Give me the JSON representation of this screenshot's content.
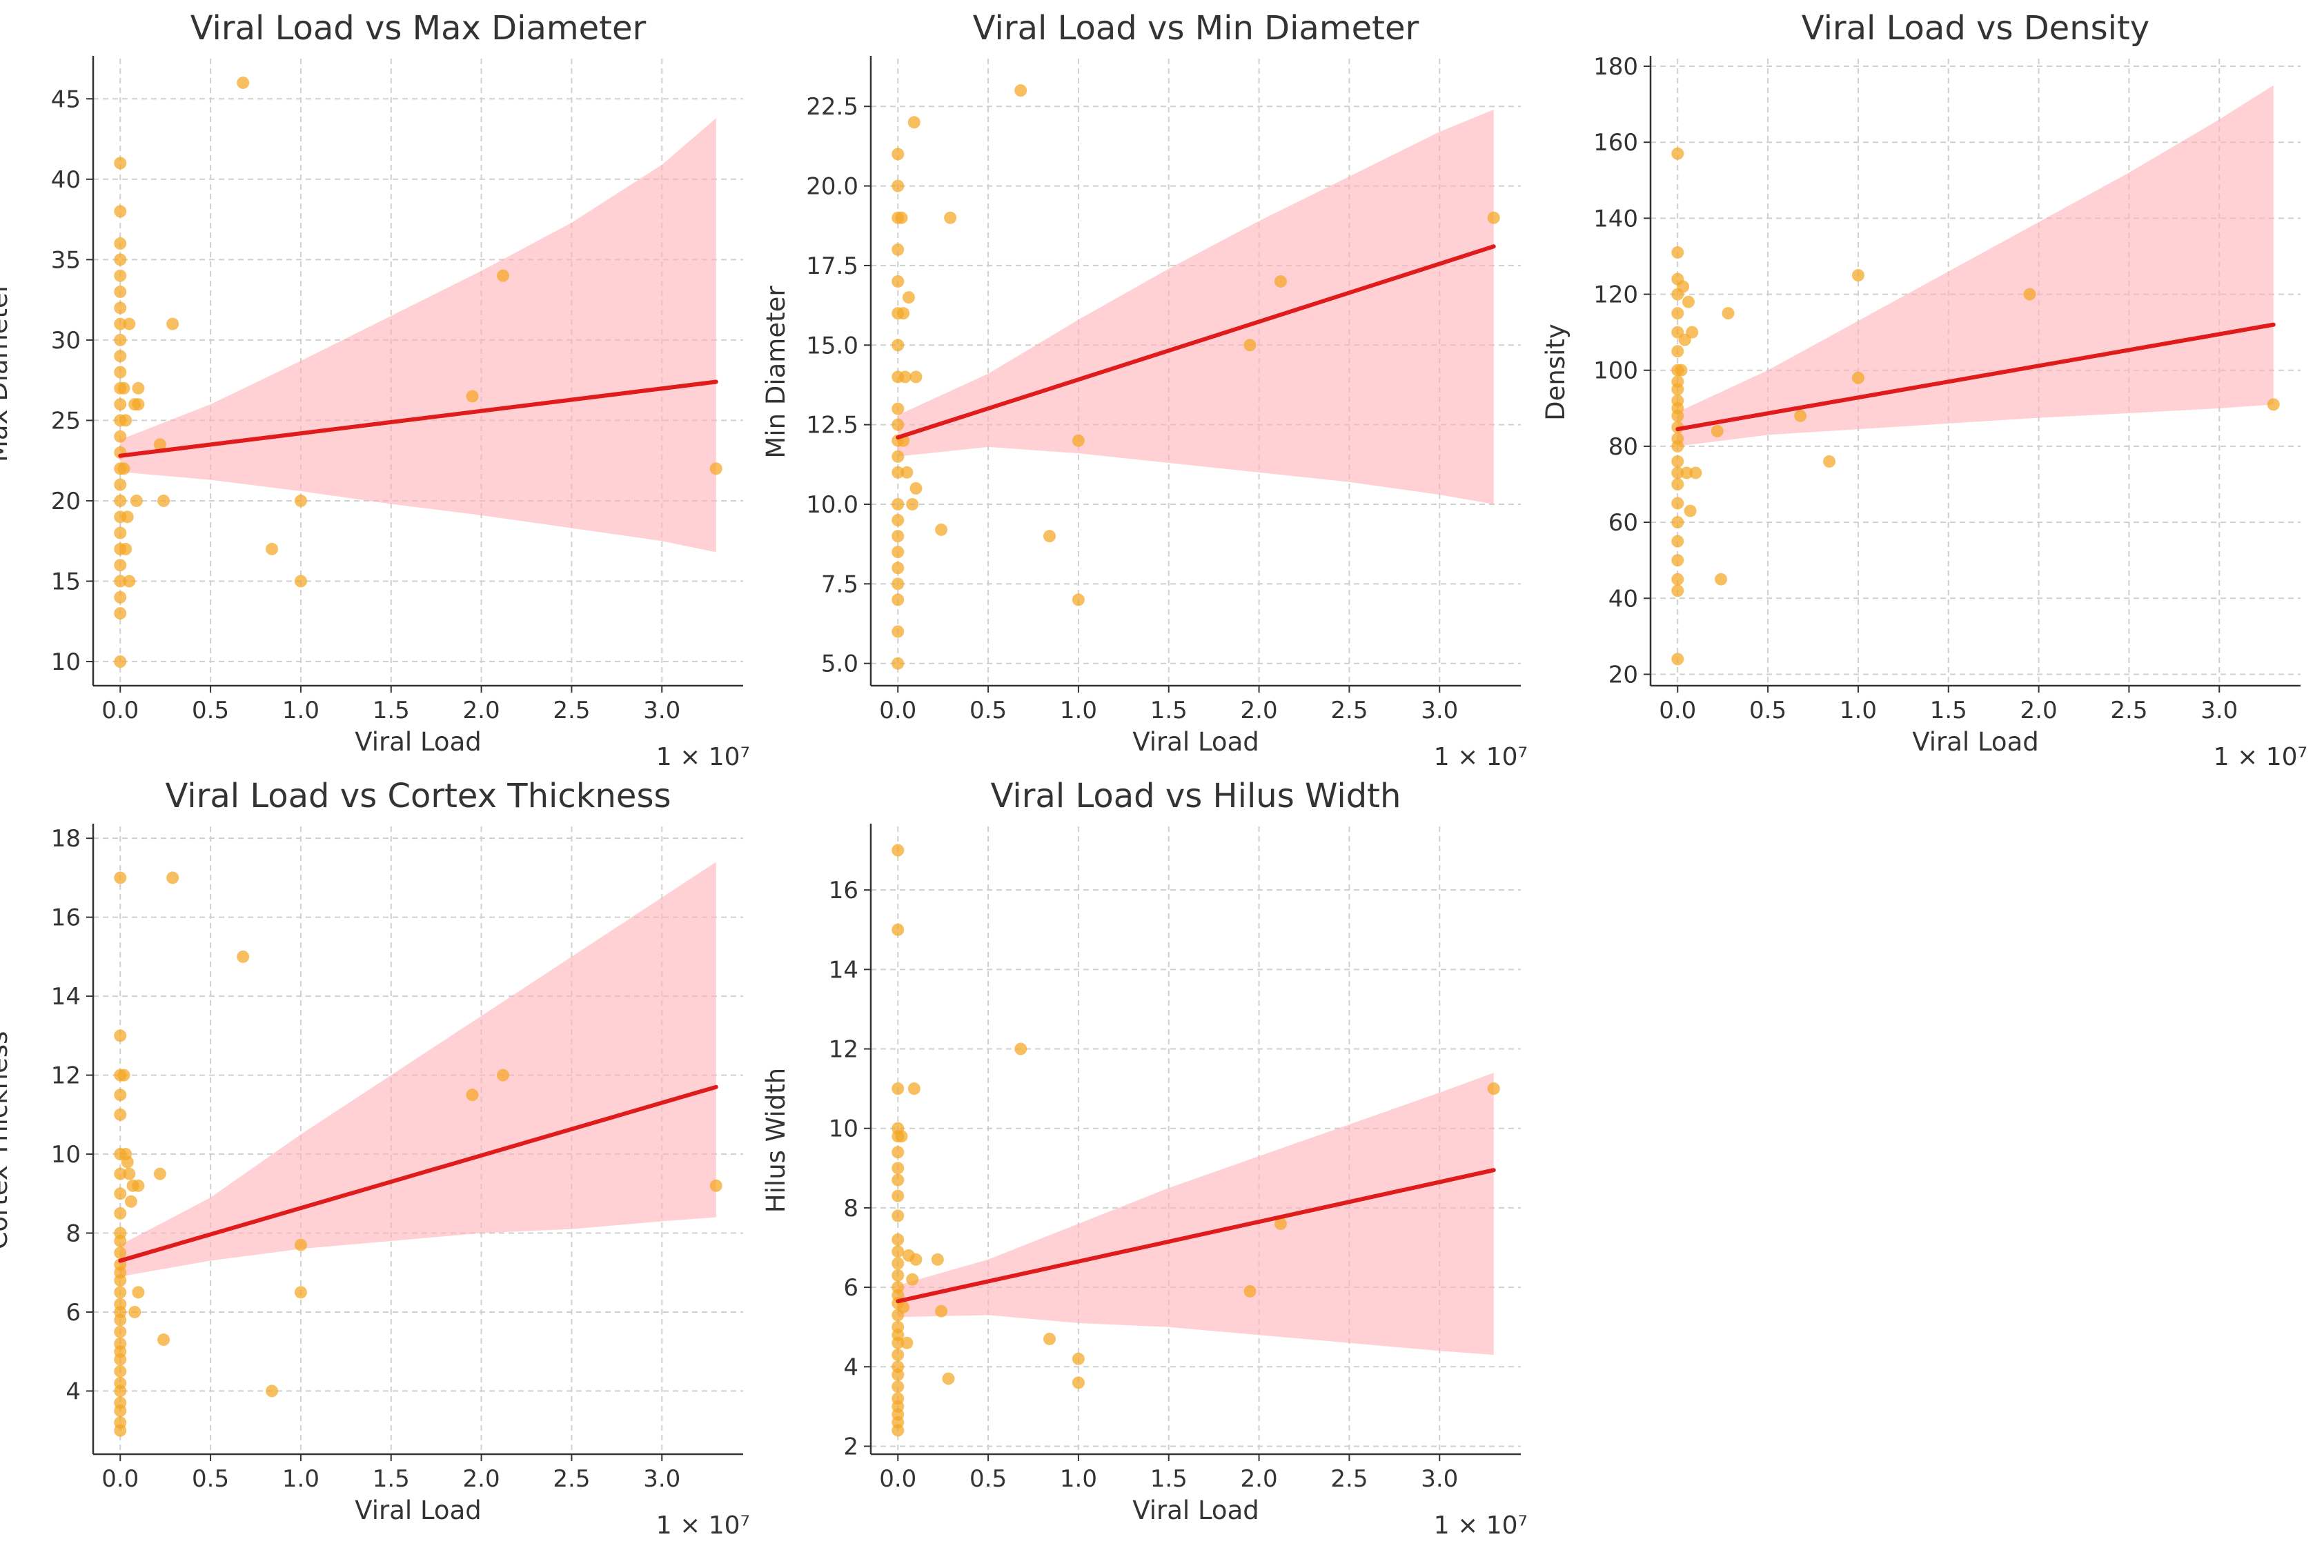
{
  "figure": {
    "colors": {
      "point": "#f5a623",
      "line": "#e01b1b",
      "band": "#ffb3b8",
      "grid": "#cfcfcf",
      "axis": "#333333"
    }
  },
  "chart_data": [
    {
      "type": "scatter",
      "title": "Viral Load vs Max Diameter",
      "xlabel": "Viral Load",
      "ylabel": "Max Diameter",
      "x_multiplier": "1 × 10⁷",
      "xlim": [
        -0.15,
        3.45
      ],
      "ylim": [
        8.5,
        47.5
      ],
      "xticks": [
        0.0,
        0.5,
        1.0,
        1.5,
        2.0,
        2.5,
        3.0
      ],
      "xtick_labels": [
        "0.0",
        "0.5",
        "1.0",
        "1.5",
        "2.0",
        "2.5",
        "3.0"
      ],
      "yticks": [
        10,
        15,
        20,
        25,
        30,
        35,
        40,
        45
      ],
      "ytick_labels": [
        "10",
        "15",
        "20",
        "25",
        "30",
        "35",
        "40",
        "45"
      ],
      "points": [
        [
          0,
          41
        ],
        [
          0,
          38
        ],
        [
          0,
          36
        ],
        [
          0,
          35
        ],
        [
          0,
          34
        ],
        [
          0,
          33
        ],
        [
          0,
          32
        ],
        [
          0,
          31
        ],
        [
          0,
          30
        ],
        [
          0,
          29
        ],
        [
          0,
          28
        ],
        [
          0,
          27
        ],
        [
          0,
          26
        ],
        [
          0,
          25
        ],
        [
          0,
          24
        ],
        [
          0,
          23
        ],
        [
          0,
          22
        ],
        [
          0,
          21
        ],
        [
          0,
          20
        ],
        [
          0,
          19
        ],
        [
          0,
          18
        ],
        [
          0,
          17
        ],
        [
          0,
          16
        ],
        [
          0,
          15
        ],
        [
          0,
          14
        ],
        [
          0,
          13
        ],
        [
          0,
          10
        ],
        [
          0.02,
          27
        ],
        [
          0.02,
          22
        ],
        [
          0.03,
          17
        ],
        [
          0.03,
          25
        ],
        [
          0.04,
          19
        ],
        [
          0.05,
          31
        ],
        [
          0.05,
          15
        ],
        [
          0.08,
          26
        ],
        [
          0.09,
          20
        ],
        [
          0.1,
          27
        ],
        [
          0.1,
          26
        ],
        [
          0.22,
          23.5
        ],
        [
          0.24,
          20
        ],
        [
          0.29,
          31
        ],
        [
          0.68,
          46
        ],
        [
          0.84,
          17
        ],
        [
          1.0,
          15
        ],
        [
          1.0,
          20
        ],
        [
          1.95,
          26.5
        ],
        [
          2.12,
          34
        ],
        [
          3.3,
          22
        ]
      ],
      "fit": {
        "x": [
          0.0,
          3.3
        ],
        "y": [
          22.8,
          27.4
        ]
      },
      "band": {
        "x": [
          0.0,
          0.5,
          1.0,
          1.5,
          2.0,
          2.5,
          3.0,
          3.3
        ],
        "lower": [
          21.8,
          21.3,
          20.6,
          19.8,
          19.1,
          18.3,
          17.5,
          16.8
        ],
        "upper": [
          23.8,
          26.0,
          28.7,
          31.5,
          34.3,
          37.3,
          40.9,
          43.8
        ]
      }
    },
    {
      "type": "scatter",
      "title": "Viral Load vs Min Diameter",
      "xlabel": "Viral Load",
      "ylabel": "Min Diameter",
      "x_multiplier": "1 × 10⁷",
      "xlim": [
        -0.15,
        3.45
      ],
      "ylim": [
        4.3,
        24.0
      ],
      "xticks": [
        0.0,
        0.5,
        1.0,
        1.5,
        2.0,
        2.5,
        3.0
      ],
      "xtick_labels": [
        "0.0",
        "0.5",
        "1.0",
        "1.5",
        "2.0",
        "2.5",
        "3.0"
      ],
      "yticks": [
        5.0,
        7.5,
        10.0,
        12.5,
        15.0,
        17.5,
        20.0,
        22.5
      ],
      "ytick_labels": [
        "5.0",
        "7.5",
        "10.0",
        "12.5",
        "15.0",
        "17.5",
        "20.0",
        "22.5"
      ],
      "points": [
        [
          0,
          21
        ],
        [
          0,
          20
        ],
        [
          0,
          19
        ],
        [
          0,
          18
        ],
        [
          0,
          17
        ],
        [
          0,
          16
        ],
        [
          0,
          15
        ],
        [
          0,
          14
        ],
        [
          0,
          13
        ],
        [
          0,
          12.5
        ],
        [
          0,
          12
        ],
        [
          0,
          11.5
        ],
        [
          0,
          11
        ],
        [
          0,
          10
        ],
        [
          0,
          9.5
        ],
        [
          0,
          9
        ],
        [
          0,
          8.5
        ],
        [
          0,
          8
        ],
        [
          0,
          7.5
        ],
        [
          0,
          7
        ],
        [
          0,
          6
        ],
        [
          0,
          5
        ],
        [
          0.02,
          19
        ],
        [
          0.03,
          16
        ],
        [
          0.03,
          12
        ],
        [
          0.04,
          14
        ],
        [
          0.05,
          11
        ],
        [
          0.06,
          16.5
        ],
        [
          0.08,
          10
        ],
        [
          0.09,
          22
        ],
        [
          0.1,
          14
        ],
        [
          0.1,
          10.5
        ],
        [
          0.24,
          9.2
        ],
        [
          0.29,
          19
        ],
        [
          0.68,
          23
        ],
        [
          0.84,
          9
        ],
        [
          1.0,
          7
        ],
        [
          1.0,
          12
        ],
        [
          1.95,
          15
        ],
        [
          2.12,
          17
        ],
        [
          3.3,
          19
        ]
      ],
      "fit": {
        "x": [
          0.0,
          3.3
        ],
        "y": [
          12.1,
          18.1
        ]
      },
      "band": {
        "x": [
          0.0,
          0.5,
          1.0,
          1.5,
          2.0,
          2.5,
          3.0,
          3.3
        ],
        "lower": [
          11.5,
          11.8,
          11.6,
          11.3,
          11.0,
          10.7,
          10.3,
          10.0
        ],
        "upper": [
          12.8,
          14.1,
          15.8,
          17.4,
          18.9,
          20.3,
          21.7,
          22.4
        ]
      }
    },
    {
      "type": "scatter",
      "title": "Viral Load vs Density",
      "xlabel": "Viral Load",
      "ylabel": "Density",
      "x_multiplier": "1 × 10⁷",
      "xlim": [
        -0.15,
        3.45
      ],
      "ylim": [
        17,
        182
      ],
      "xticks": [
        0.0,
        0.5,
        1.0,
        1.5,
        2.0,
        2.5,
        3.0
      ],
      "xtick_labels": [
        "0.0",
        "0.5",
        "1.0",
        "1.5",
        "2.0",
        "2.5",
        "3.0"
      ],
      "yticks": [
        20,
        40,
        60,
        80,
        100,
        120,
        140,
        160,
        180
      ],
      "ytick_labels": [
        "20",
        "40",
        "60",
        "80",
        "100",
        "120",
        "140",
        "160",
        "180"
      ],
      "points": [
        [
          0,
          157
        ],
        [
          0,
          131
        ],
        [
          0,
          124
        ],
        [
          0,
          120
        ],
        [
          0,
          115
        ],
        [
          0,
          110
        ],
        [
          0,
          105
        ],
        [
          0,
          100
        ],
        [
          0,
          97
        ],
        [
          0,
          95
        ],
        [
          0,
          92
        ],
        [
          0,
          90
        ],
        [
          0,
          88
        ],
        [
          0,
          85
        ],
        [
          0,
          82
        ],
        [
          0,
          80
        ],
        [
          0,
          76
        ],
        [
          0,
          73
        ],
        [
          0,
          70
        ],
        [
          0,
          65
        ],
        [
          0,
          60
        ],
        [
          0,
          55
        ],
        [
          0,
          50
        ],
        [
          0,
          45
        ],
        [
          0,
          42
        ],
        [
          0,
          24
        ],
        [
          0.02,
          100
        ],
        [
          0.03,
          122
        ],
        [
          0.04,
          108
        ],
        [
          0.05,
          73
        ],
        [
          0.06,
          118
        ],
        [
          0.07,
          63
        ],
        [
          0.08,
          110
        ],
        [
          0.1,
          73
        ],
        [
          0.22,
          84
        ],
        [
          0.24,
          45
        ],
        [
          0.28,
          115
        ],
        [
          0.68,
          88
        ],
        [
          0.84,
          76
        ],
        [
          1.0,
          98
        ],
        [
          1.0,
          125
        ],
        [
          1.95,
          120
        ],
        [
          3.3,
          91
        ]
      ],
      "fit": {
        "x": [
          0.0,
          3.3
        ],
        "y": [
          84.5,
          112.0
        ]
      },
      "band": {
        "x": [
          0.0,
          0.5,
          1.0,
          1.5,
          2.0,
          2.5,
          3.0,
          3.3
        ],
        "lower": [
          80,
          83,
          84.5,
          86,
          87.5,
          88.7,
          90,
          91
        ],
        "upper": [
          89,
          100,
          113,
          126,
          139,
          152,
          166,
          175
        ]
      }
    },
    {
      "type": "scatter",
      "title": "Viral Load vs Cortex Thickness",
      "xlabel": "Viral Load",
      "ylabel": "Cortex Thickness",
      "x_multiplier": "1 × 10⁷",
      "xlim": [
        -0.15,
        3.45
      ],
      "ylim": [
        2.4,
        18.3
      ],
      "xticks": [
        0.0,
        0.5,
        1.0,
        1.5,
        2.0,
        2.5,
        3.0
      ],
      "xtick_labels": [
        "0.0",
        "0.5",
        "1.0",
        "1.5",
        "2.0",
        "2.5",
        "3.0"
      ],
      "yticks": [
        4,
        6,
        8,
        10,
        12,
        14,
        16,
        18
      ],
      "ytick_labels": [
        "4",
        "6",
        "8",
        "10",
        "12",
        "14",
        "16",
        "18"
      ],
      "points": [
        [
          0,
          17
        ],
        [
          0,
          13
        ],
        [
          0,
          12
        ],
        [
          0,
          11.5
        ],
        [
          0,
          11
        ],
        [
          0,
          10
        ],
        [
          0,
          9.5
        ],
        [
          0,
          9
        ],
        [
          0,
          8.5
        ],
        [
          0,
          8
        ],
        [
          0,
          7.8
        ],
        [
          0,
          7.5
        ],
        [
          0,
          7.2
        ],
        [
          0,
          7
        ],
        [
          0,
          6.8
        ],
        [
          0,
          6.5
        ],
        [
          0,
          6.2
        ],
        [
          0,
          6
        ],
        [
          0,
          5.8
        ],
        [
          0,
          5.5
        ],
        [
          0,
          5.2
        ],
        [
          0,
          5
        ],
        [
          0,
          4.8
        ],
        [
          0,
          4.5
        ],
        [
          0,
          4.2
        ],
        [
          0,
          4
        ],
        [
          0,
          3.7
        ],
        [
          0,
          3.5
        ],
        [
          0,
          3.2
        ],
        [
          0,
          3
        ],
        [
          0.02,
          12
        ],
        [
          0.03,
          10
        ],
        [
          0.04,
          9.8
        ],
        [
          0.05,
          9.5
        ],
        [
          0.06,
          8.8
        ],
        [
          0.07,
          9.2
        ],
        [
          0.08,
          6
        ],
        [
          0.1,
          9.2
        ],
        [
          0.1,
          6.5
        ],
        [
          0.22,
          9.5
        ],
        [
          0.24,
          5.3
        ],
        [
          0.29,
          17
        ],
        [
          0.68,
          15
        ],
        [
          0.84,
          4
        ],
        [
          1.0,
          7.7
        ],
        [
          1.0,
          6.5
        ],
        [
          1.95,
          11.5
        ],
        [
          2.12,
          12
        ],
        [
          3.3,
          9.2
        ]
      ],
      "fit": {
        "x": [
          0.0,
          3.3
        ],
        "y": [
          7.3,
          11.7
        ]
      },
      "band": {
        "x": [
          0.0,
          0.5,
          1.0,
          1.5,
          2.0,
          2.5,
          3.0,
          3.3
        ],
        "lower": [
          6.9,
          7.3,
          7.6,
          7.8,
          8.0,
          8.1,
          8.3,
          8.4
        ],
        "upper": [
          7.7,
          8.9,
          10.5,
          12.0,
          13.5,
          15.0,
          16.5,
          17.4
        ]
      }
    },
    {
      "type": "scatter",
      "title": "Viral Load vs Hilus Width",
      "xlabel": "Viral Load",
      "ylabel": "Hilus Width",
      "x_multiplier": "1 × 10⁷",
      "xlim": [
        -0.15,
        3.45
      ],
      "ylim": [
        1.8,
        17.6
      ],
      "xticks": [
        0.0,
        0.5,
        1.0,
        1.5,
        2.0,
        2.5,
        3.0
      ],
      "xtick_labels": [
        "0.0",
        "0.5",
        "1.0",
        "1.5",
        "2.0",
        "2.5",
        "3.0"
      ],
      "yticks": [
        2,
        4,
        6,
        8,
        10,
        12,
        14,
        16
      ],
      "ytick_labels": [
        "2",
        "4",
        "6",
        "8",
        "10",
        "12",
        "14",
        "16"
      ],
      "points": [
        [
          0,
          17
        ],
        [
          0,
          15
        ],
        [
          0,
          11
        ],
        [
          0,
          10
        ],
        [
          0,
          9.8
        ],
        [
          0,
          9.4
        ],
        [
          0,
          9
        ],
        [
          0,
          8.7
        ],
        [
          0,
          8.3
        ],
        [
          0,
          7.8
        ],
        [
          0,
          7.2
        ],
        [
          0,
          6.9
        ],
        [
          0,
          6.6
        ],
        [
          0,
          6.3
        ],
        [
          0,
          6
        ],
        [
          0,
          5.8
        ],
        [
          0,
          5.6
        ],
        [
          0,
          5.3
        ],
        [
          0,
          5
        ],
        [
          0,
          4.8
        ],
        [
          0,
          4.6
        ],
        [
          0,
          4.3
        ],
        [
          0,
          4
        ],
        [
          0,
          3.8
        ],
        [
          0,
          3.5
        ],
        [
          0,
          3.2
        ],
        [
          0,
          3
        ],
        [
          0,
          2.8
        ],
        [
          0,
          2.6
        ],
        [
          0,
          2.4
        ],
        [
          0.02,
          9.8
        ],
        [
          0.03,
          5.5
        ],
        [
          0.05,
          4.6
        ],
        [
          0.06,
          6.8
        ],
        [
          0.08,
          6.2
        ],
        [
          0.09,
          11
        ],
        [
          0.1,
          6.7
        ],
        [
          0.22,
          6.7
        ],
        [
          0.24,
          5.4
        ],
        [
          0.28,
          3.7
        ],
        [
          0.68,
          12
        ],
        [
          0.84,
          4.7
        ],
        [
          1.0,
          4.2
        ],
        [
          1.0,
          3.6
        ],
        [
          1.95,
          5.9
        ],
        [
          2.12,
          7.6
        ],
        [
          3.3,
          11
        ]
      ],
      "fit": {
        "x": [
          0.0,
          3.3
        ],
        "y": [
          5.65,
          8.95
        ]
      },
      "band": {
        "x": [
          0.0,
          0.5,
          1.0,
          1.5,
          2.0,
          2.5,
          3.0,
          3.3
        ],
        "lower": [
          5.25,
          5.3,
          5.1,
          5.0,
          4.8,
          4.6,
          4.4,
          4.3
        ],
        "upper": [
          6.05,
          6.7,
          7.6,
          8.5,
          9.3,
          10.1,
          10.9,
          11.4
        ]
      }
    }
  ]
}
